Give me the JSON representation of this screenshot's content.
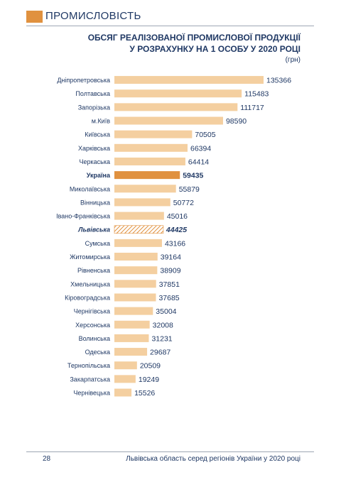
{
  "header": {
    "section_title": "ПРОМИСЛОВІСТЬ"
  },
  "chart_data": {
    "type": "bar",
    "orientation": "horizontal",
    "title": "ОБСЯГ РЕАЛІЗОВАНОЇ ПРОМИСЛОВОЇ ПРОДУКЦІЇ\nУ РОЗРАХУНКУ НА 1 ОСОБУ У 2020 РОЦІ",
    "title_lines": [
      "ОБСЯГ РЕАЛІЗОВАНОЇ ПРОМИСЛОВОЇ ПРОДУКЦІЇ",
      "У РОЗРАХУНКУ НА 1 ОСОБУ У 2020 РОЦІ"
    ],
    "unit": "(грн)",
    "categories": [
      "Дніпропетровська",
      "Полтавська",
      "Запорізька",
      "м.Київ",
      "Київська",
      "Харківська",
      "Черкаська",
      "Україна",
      "Миколаївська",
      "Вінницька",
      "Івано-Франківська",
      "Львівська",
      "Сумська",
      "Житомирська",
      "Рівненська",
      "Хмельницька",
      "Кіровоградська",
      "Чернігівська",
      "Херсонська",
      "Волинська",
      "Одеська",
      "Тернопільська",
      "Закарпатська",
      "Чернівецька"
    ],
    "values": [
      135366,
      115483,
      111717,
      98590,
      70505,
      66394,
      64414,
      59435,
      55879,
      50772,
      45016,
      44425,
      43166,
      39164,
      38909,
      37851,
      37685,
      35004,
      32008,
      31231,
      29687,
      20509,
      19249,
      15526
    ],
    "highlight": {
      "Україна": "solid",
      "Львівська": "hatched"
    },
    "xlim": [
      0,
      135366
    ],
    "grid": false,
    "colors": {
      "bar": "#f4cfa0",
      "highlight": "#e0913f",
      "hatch": "#e0913f",
      "text": "#1f3864"
    }
  },
  "footer": {
    "page_number": "28",
    "text": "Львівська область серед регіонів України у 2020 році"
  }
}
